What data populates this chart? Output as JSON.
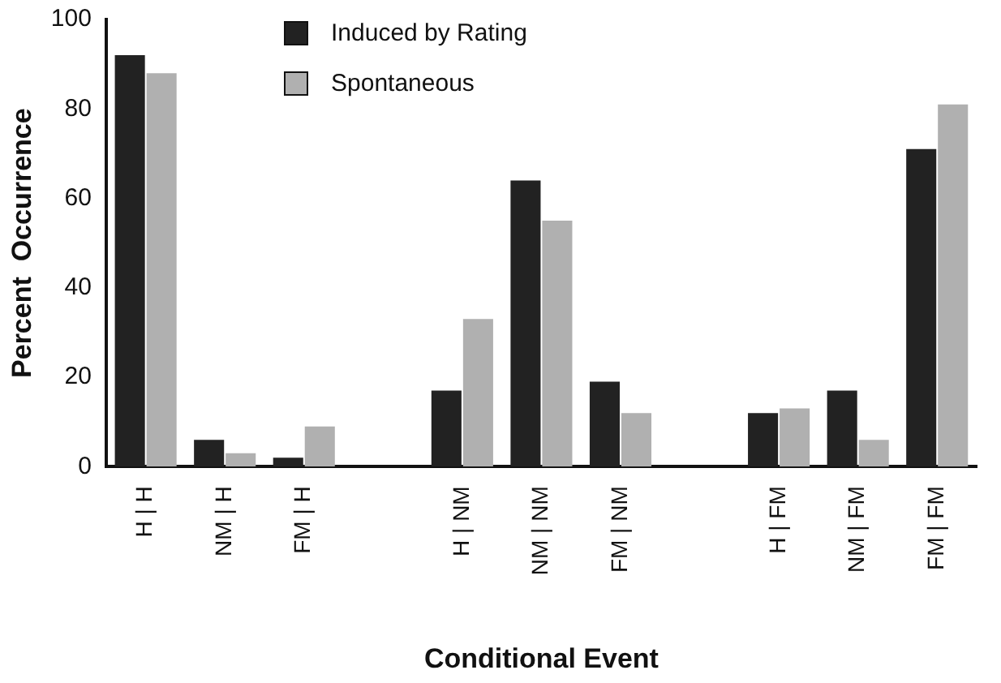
{
  "chart_data": {
    "type": "bar",
    "xlabel": "Conditional Event",
    "ylabel": "Percent  Occurrence",
    "categories": [
      "H | H",
      "NM | H",
      "FM | H",
      null,
      "H | NM",
      "NM | NM",
      "FM | NM",
      null,
      "H | FM",
      "NM | FM",
      "FM | FM"
    ],
    "series": [
      {
        "name": "Induced by Rating",
        "color": "#222222",
        "values": [
          92,
          6,
          2,
          null,
          17,
          64,
          19,
          null,
          12,
          17,
          71
        ]
      },
      {
        "name": "Spontaneous",
        "color": "#b0b0b0",
        "values": [
          88,
          3,
          9,
          null,
          33,
          55,
          12,
          null,
          13,
          6,
          81
        ]
      }
    ],
    "ylim": [
      0,
      100
    ],
    "yticks": [
      0,
      20,
      40,
      60,
      80,
      100
    ],
    "grid": false,
    "legend": "top"
  }
}
